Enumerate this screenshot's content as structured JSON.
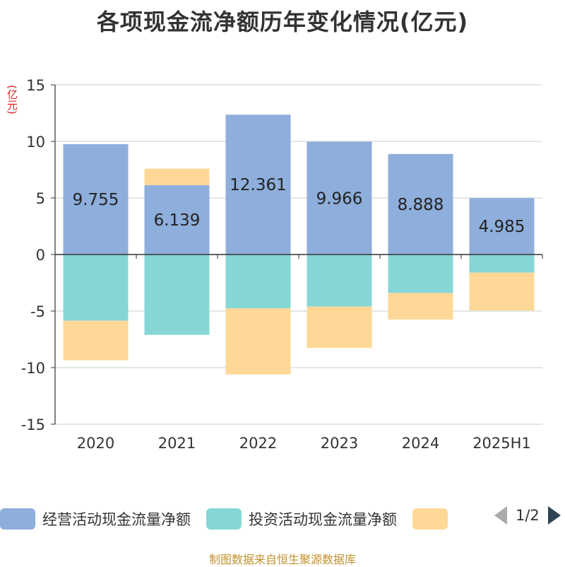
{
  "title": "各项现金流净额历年变化情况(亿元)",
  "unit_label": "(亿元)",
  "footer": "制图数据来自恒生聚源数据库",
  "pager": "1/2",
  "chart_data": {
    "type": "bar",
    "stacked": true,
    "categories": [
      "2020",
      "2021",
      "2022",
      "2023",
      "2024",
      "2025H1"
    ],
    "ylim": [
      -15,
      15
    ],
    "yticks": [
      -15,
      -10,
      -5,
      0,
      5,
      10,
      15
    ],
    "ylabel": "(亿元)",
    "grid": true,
    "legend_position": "bottom",
    "series": [
      {
        "name": "经营活动现金流量净额",
        "color": "#8eaedb",
        "values": [
          9.755,
          6.139,
          12.361,
          9.966,
          8.888,
          4.985
        ],
        "show_labels": true
      },
      {
        "name": "投资活动现金流量净额",
        "color": "#86d6d6",
        "values": [
          -5.85,
          -7.1,
          -4.75,
          -4.6,
          -3.4,
          -1.6
        ],
        "show_labels": false
      },
      {
        "name": "",
        "color": "#ffd898",
        "values": [
          -3.5,
          1.45,
          -5.85,
          -3.65,
          -2.35,
          -3.35
        ],
        "show_labels": false
      }
    ]
  }
}
